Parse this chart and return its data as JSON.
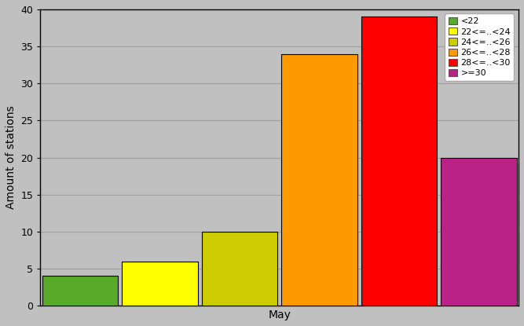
{
  "categories": [
    "<22",
    "22<=..<24",
    "24<=..<26",
    "26<=..<28",
    "28<=..<30",
    ">=30"
  ],
  "values": [
    4,
    6,
    10,
    34,
    39,
    20
  ],
  "bar_colors": [
    "#5aaa2a",
    "#ffff00",
    "#cccc00",
    "#ff9900",
    "#ff0000",
    "#bb2288"
  ],
  "xlabel": "May",
  "ylabel": "Amount of stations",
  "ylim": [
    0,
    40
  ],
  "yticks": [
    0,
    5,
    10,
    15,
    20,
    25,
    30,
    35,
    40
  ],
  "background_color": "#c0c0c0",
  "plot_bg_color": "#c0c0c0",
  "bar_edge_color": "#000000",
  "grid_color": "#b0b0b0",
  "figsize": [
    6.67,
    4.15
  ],
  "dpi": 100
}
